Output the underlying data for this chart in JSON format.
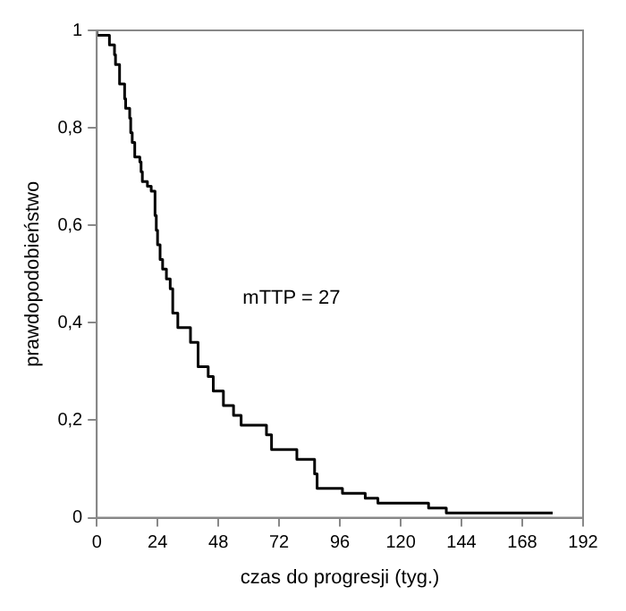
{
  "chart_data": {
    "type": "step",
    "xlabel": "czas do progresji (tyg.)",
    "ylabel": "prawdopodobieństwo",
    "x": [
      0,
      5,
      7,
      7.4,
      9,
      11,
      11.4,
      13,
      13.4,
      14,
      15,
      17,
      17.5,
      18,
      20,
      21.5,
      23,
      23.5,
      24,
      25,
      26,
      27.5,
      29,
      30,
      32,
      37,
      40,
      44,
      46,
      50,
      54,
      57,
      67,
      69,
      79,
      86,
      87,
      97,
      106,
      111,
      131,
      138,
      177,
      180
    ],
    "series": [
      {
        "color": "#000000",
        "values": [
          1,
          0.99,
          0.97,
          0.95,
          0.93,
          0.89,
          0.86,
          0.84,
          0.82,
          0.79,
          0.77,
          0.74,
          0.73,
          0.71,
          0.69,
          0.68,
          0.67,
          0.62,
          0.59,
          0.56,
          0.53,
          0.51,
          0.49,
          0.47,
          0.42,
          0.39,
          0.36,
          0.31,
          0.29,
          0.26,
          0.23,
          0.21,
          0.19,
          0.17,
          0.14,
          0.12,
          0.09,
          0.06,
          0.05,
          0.04,
          0.03,
          0.02,
          0.01,
          0.01
        ]
      }
    ],
    "xlim": [
      0,
      192
    ],
    "xticks": [
      0,
      24,
      48,
      72,
      96,
      120,
      144,
      168,
      192
    ],
    "ylim": [
      0,
      1
    ],
    "yticks": [
      0,
      {
        "value": 0.2,
        "label": "0,2"
      },
      {
        "value": 0.4,
        "label": "0,4"
      },
      {
        "value": 0.6,
        "label": "0,6"
      },
      {
        "value": 0.8,
        "label": "0,8"
      },
      1
    ],
    "annotations": [
      "mTTP = 27"
    ],
    "grid": false,
    "legend": false,
    "marker": "none",
    "line_style": "solid"
  }
}
